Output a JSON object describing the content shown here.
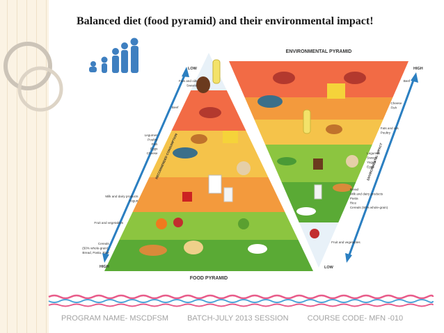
{
  "title": "Balanced diet (food pyramid) and their environmental impact!",
  "footer": {
    "program": "PROGRAM NAME- MSCDFSM",
    "batch": "BATCH-JULY 2013 SESSION",
    "course": "COURSE CODE- MFN -010"
  },
  "food_pyramid": {
    "title": "FOOD PYRAMID",
    "low_label": "LOW",
    "high_label": "HIGH",
    "axis_label": "RECOMMENDED CONSUMPTION",
    "levels": [
      {
        "label": "Fats and oils\nSweets",
        "color": "#e8f1f8"
      },
      {
        "label": "Beef",
        "color": "#f26b45"
      },
      {
        "label": "Legumes\nPoultry\nFish\nEggs\nCheese",
        "color": "#f5c34a"
      },
      {
        "label": "Milk and dairy products\nYogurt",
        "color": "#f39a3d"
      },
      {
        "label": "Fruit and vegetables",
        "color": "#8cc540"
      },
      {
        "label": "Cereals\n(50% whole-grain),\nBread, Pasta, Rice",
        "color": "#5aaa35"
      }
    ]
  },
  "environmental_pyramid": {
    "title": "ENVIRONMENTAL PYRAMID",
    "low_label": "LOW",
    "high_label": "HIGH",
    "axis_label": "ENVIRONMENTAL IMPACT",
    "levels": [
      {
        "label": "Beef",
        "color": "#f26b45"
      },
      {
        "label": "Cheese\nFish",
        "color": "#f39a3d"
      },
      {
        "label": "Fats and oils\nPoultry",
        "color": "#f5c34a"
      },
      {
        "label": "Legumes\nSweets\nYogurt\nEggs",
        "color": "#8cc540"
      },
      {
        "label": "Bread\nMilk and dairy products\nPasta\nRice\nCereals (50% whole-grain)",
        "color": "#5aaa35"
      },
      {
        "label": "Fruit and vegetables",
        "color": "#e8f1f8"
      }
    ]
  },
  "colors": {
    "sidebar": "#fbf3e4",
    "wave_pink": "#e85c8a",
    "wave_blue": "#4aa3d8",
    "axis_blue": "#2b7fc1"
  }
}
